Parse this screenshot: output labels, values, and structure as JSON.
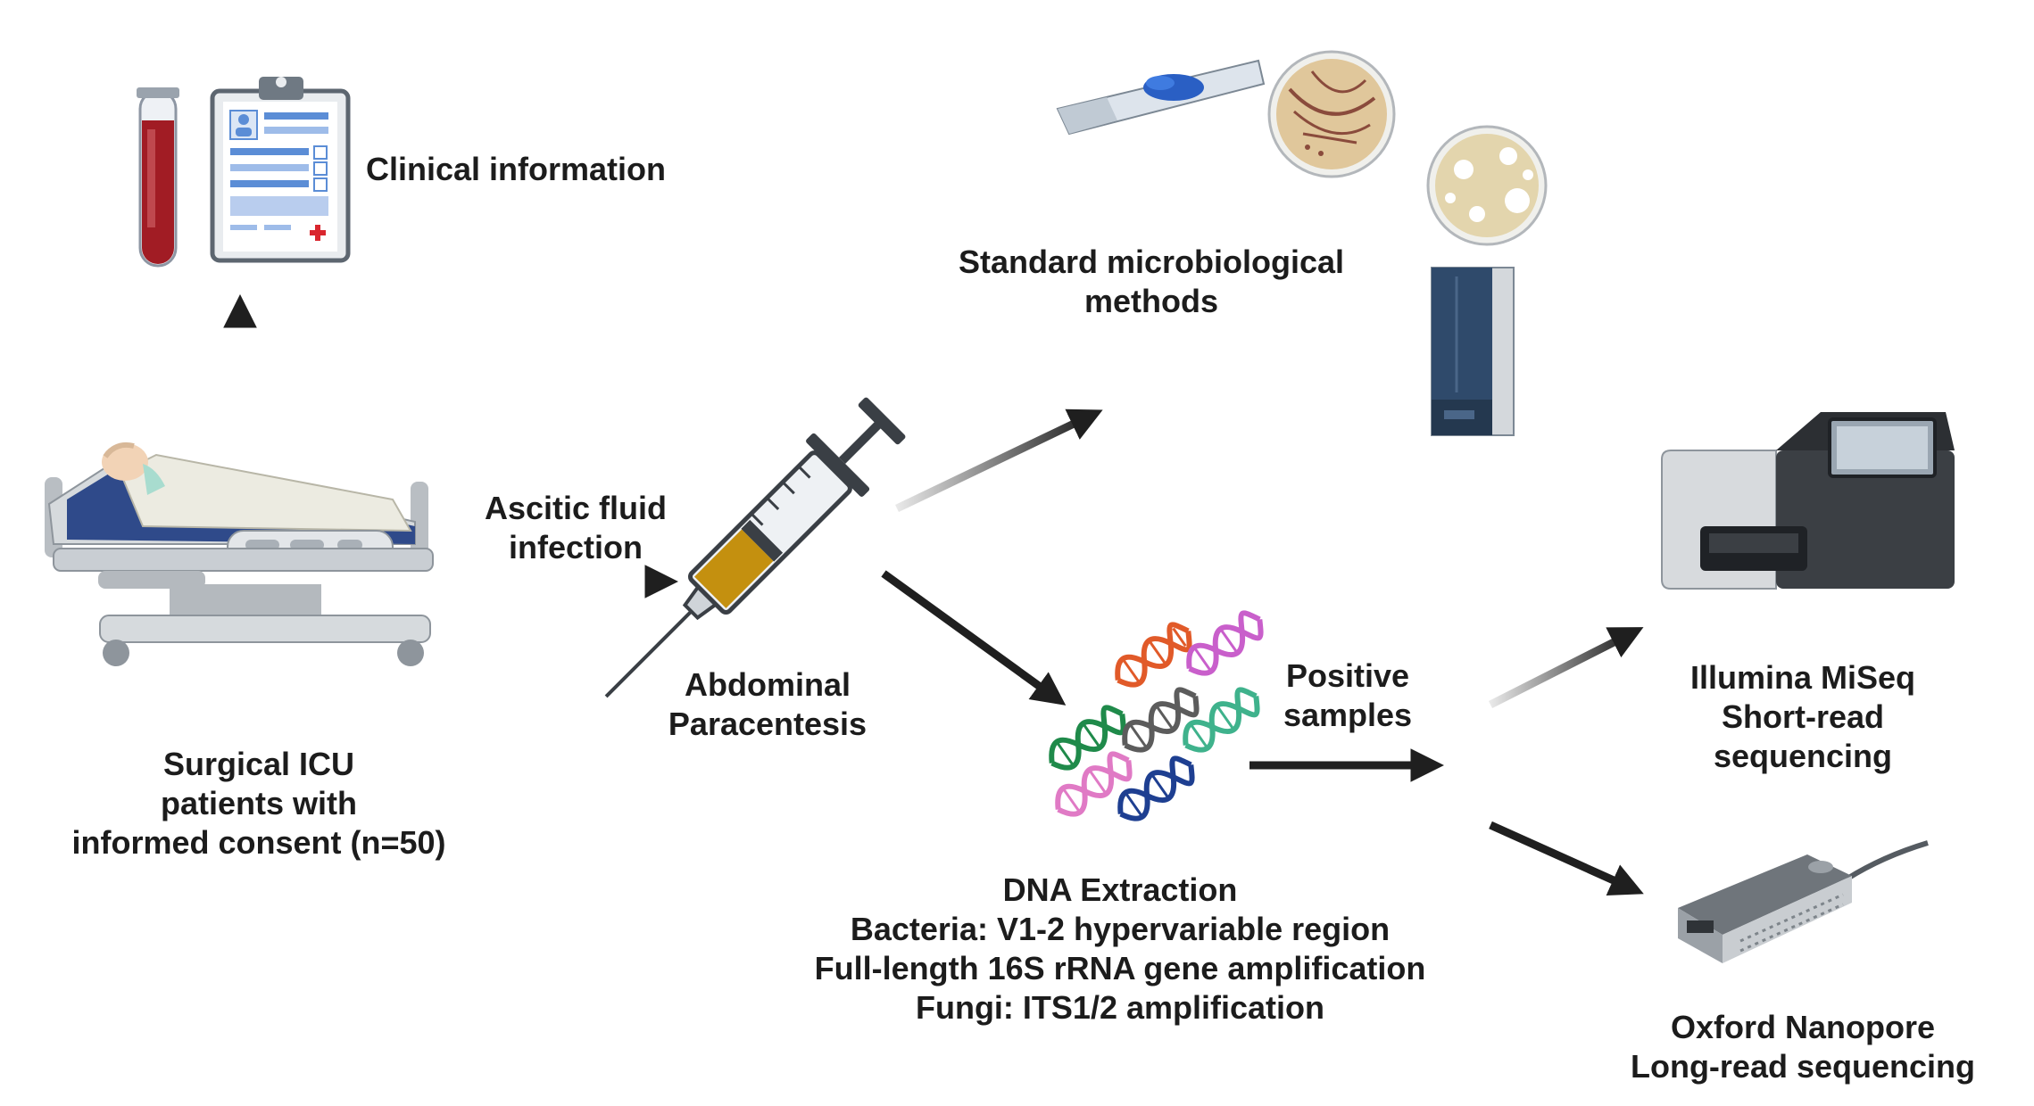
{
  "labels": {
    "clinical": "Clinical information",
    "standard": [
      "Standard microbiological",
      "methods"
    ],
    "ascitic": [
      "Ascitic fluid",
      "infection"
    ],
    "paracentesis": [
      "Abdominal",
      "Paracentesis"
    ],
    "patients": [
      "Surgical ICU",
      "patients with",
      "informed consent (n=50)"
    ],
    "positive": [
      "Positive",
      "samples"
    ],
    "dna": [
      "DNA Extraction",
      "Bacteria: V1-2 hypervariable region",
      "Full-length 16S rRNA gene amplification",
      "Fungi: ITS1/2 amplification"
    ],
    "illumina": [
      "Illumina MiSeq",
      "Short-read",
      "sequencing"
    ],
    "nanopore": [
      "Oxford Nanopore",
      "Long-read sequencing"
    ]
  },
  "icons": [
    "blood-tube-icon",
    "clipboard-icon",
    "microscope-slide-icon",
    "petri-dish-icon",
    "analyzer-icon",
    "hospital-bed-icon",
    "syringe-icon",
    "dna-icon",
    "sequencer-icon",
    "nanopore-device-icon"
  ],
  "colors": {
    "arrow": "#1f1f1f",
    "blood": "#a11c24",
    "fluid": "#c4900f",
    "clipboard": "#5b8dd6",
    "instrument": "#2f4a6b"
  }
}
